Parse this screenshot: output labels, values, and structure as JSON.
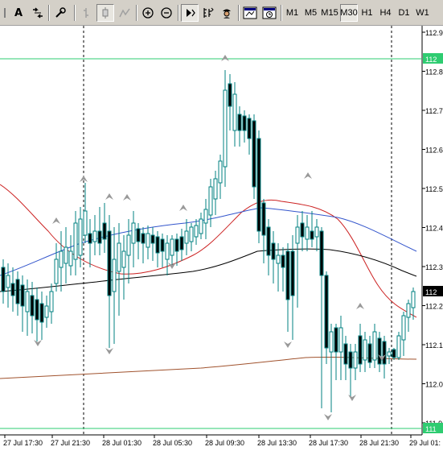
{
  "toolbar": {
    "text_tool_label": "A",
    "timeframes": [
      {
        "label": "M1",
        "active": false
      },
      {
        "label": "M5",
        "active": false
      },
      {
        "label": "M15",
        "active": false
      },
      {
        "label": "M30",
        "active": true
      },
      {
        "label": "H1",
        "active": false
      },
      {
        "label": "H4",
        "active": false
      },
      {
        "label": "D1",
        "active": false
      },
      {
        "label": "W1",
        "active": false
      }
    ],
    "icons": [
      "cursor-icon",
      "text-tool-icon",
      "arrows-icon",
      "settings-icon",
      "bar-chart-icon",
      "candlestick-chart-icon",
      "line-chart-icon",
      "zoom-in-icon",
      "zoom-out-icon",
      "auto-scroll-icon",
      "indicators-icon",
      "expert-advisor-icon",
      "template-icon",
      "period-icon"
    ]
  },
  "chart": {
    "background": "#ffffff",
    "candle_color": "#008080",
    "bear_color": "#000000",
    "price_labels": [
      "112.9",
      "112.8",
      "112.7",
      "112.6",
      "112.5",
      "112.4",
      "112.3",
      "112.2",
      "112.1",
      "112.0",
      "111.9"
    ],
    "level_labels": [
      {
        "text": "112",
        "bg": "#2ecc71"
      },
      {
        "text": "112",
        "bg": "#000000"
      },
      {
        "text": "111",
        "bg": "#2ecc71"
      }
    ],
    "time_labels": [
      "27 Jul 17:30",
      "27 Jul 21:30",
      "28 Jul 01:30",
      "28 Jul 05:30",
      "28 Jul 09:30",
      "28 Jul 13:30",
      "28 Jul 17:30",
      "28 Jul 21:30",
      "29 Jul 01:"
    ]
  }
}
